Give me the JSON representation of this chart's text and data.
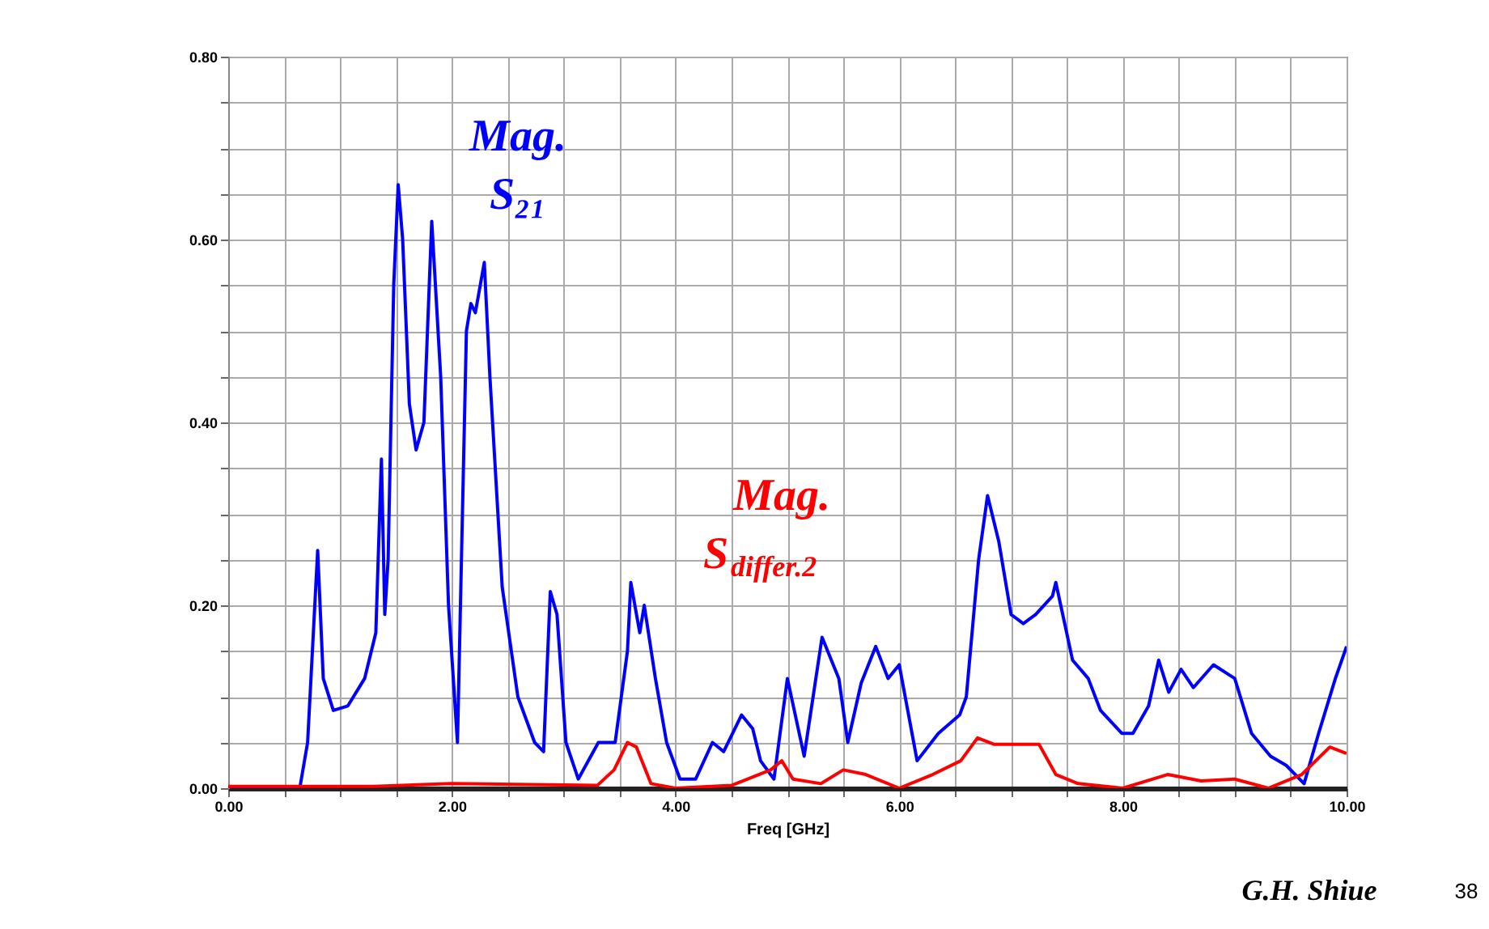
{
  "chart_data": {
    "type": "line",
    "xlabel": "Freq [GHz]",
    "xlim": [
      0,
      10
    ],
    "ylim": [
      0,
      0.8
    ],
    "xticks": [
      {
        "value": 0,
        "label": "0.00"
      },
      {
        "value": 0.5,
        "label": null
      },
      {
        "value": 1,
        "label": null
      },
      {
        "value": 1.5,
        "label": null
      },
      {
        "value": 2,
        "label": "2.00"
      },
      {
        "value": 2.5,
        "label": null
      },
      {
        "value": 3,
        "label": null
      },
      {
        "value": 3.5,
        "label": null
      },
      {
        "value": 4,
        "label": "4.00"
      },
      {
        "value": 4.5,
        "label": null
      },
      {
        "value": 5,
        "label": null
      },
      {
        "value": 5.5,
        "label": null
      },
      {
        "value": 6,
        "label": "6.00"
      },
      {
        "value": 6.5,
        "label": null
      },
      {
        "value": 7,
        "label": null
      },
      {
        "value": 7.5,
        "label": null
      },
      {
        "value": 8,
        "label": "8.00"
      },
      {
        "value": 8.5,
        "label": null
      },
      {
        "value": 9,
        "label": null
      },
      {
        "value": 9.5,
        "label": null
      },
      {
        "value": 10,
        "label": "10.00"
      }
    ],
    "yticks": [
      {
        "value": 0,
        "label": "0.00"
      },
      {
        "value": 0.05,
        "label": null
      },
      {
        "value": 0.1,
        "label": null
      },
      {
        "value": 0.15,
        "label": null
      },
      {
        "value": 0.2,
        "label": "0.20"
      },
      {
        "value": 0.25,
        "label": null
      },
      {
        "value": 0.3,
        "label": null
      },
      {
        "value": 0.35,
        "label": null
      },
      {
        "value": 0.4,
        "label": "0.40"
      },
      {
        "value": 0.45,
        "label": null
      },
      {
        "value": 0.5,
        "label": null
      },
      {
        "value": 0.55,
        "label": null
      },
      {
        "value": 0.6,
        "label": "0.60"
      },
      {
        "value": 0.65,
        "label": null
      },
      {
        "value": 0.7,
        "label": null
      },
      {
        "value": 0.75,
        "label": null
      },
      {
        "value": 0.8,
        "label": "0.80"
      }
    ],
    "grid": true,
    "legend": false,
    "marker": "none",
    "line_style": "solid",
    "series": [
      {
        "name": "Mag. S₂₁",
        "color": "#0000ff",
        "x": [
          0,
          0.5,
          0.64,
          0.71,
          0.8,
          0.85,
          0.94,
          1.07,
          1.22,
          1.32,
          1.37,
          1.4,
          1.43,
          1.48,
          1.52,
          1.56,
          1.62,
          1.68,
          1.75,
          1.82,
          1.9,
          1.97,
          2.05,
          2.13,
          2.17,
          2.21,
          2.29,
          2.34,
          2.45,
          2.59,
          2.74,
          2.82,
          2.88,
          2.94,
          3.02,
          3.13,
          3.31,
          3.46,
          3.57,
          3.6,
          3.68,
          3.72,
          3.82,
          3.92,
          4.04,
          4.18,
          4.33,
          4.43,
          4.59,
          4.69,
          4.76,
          4.88,
          5.0,
          5.15,
          5.31,
          5.46,
          5.54,
          5.66,
          5.79,
          5.9,
          6.0,
          6.16,
          6.35,
          6.54,
          6.6,
          6.71,
          6.79,
          6.89,
          7.0,
          7.11,
          7.22,
          7.37,
          7.4,
          7.55,
          7.69,
          7.8,
          7.99,
          8.09,
          8.23,
          8.32,
          8.41,
          8.52,
          8.63,
          8.81,
          9.0,
          9.15,
          9.32,
          9.46,
          9.62,
          9.75,
          9.9,
          10
        ],
        "values": [
          0,
          0,
          0,
          0.05,
          0.26,
          0.12,
          0.085,
          0.09,
          0.12,
          0.17,
          0.36,
          0.19,
          0.25,
          0.55,
          0.66,
          0.6,
          0.42,
          0.37,
          0.4,
          0.62,
          0.45,
          0.2,
          0.05,
          0.5,
          0.53,
          0.52,
          0.575,
          0.45,
          0.22,
          0.1,
          0.05,
          0.04,
          0.215,
          0.19,
          0.05,
          0.01,
          0.05,
          0.05,
          0.15,
          0.225,
          0.17,
          0.2,
          0.12,
          0.05,
          0.01,
          0.01,
          0.05,
          0.04,
          0.08,
          0.065,
          0.03,
          0.01,
          0.12,
          0.035,
          0.165,
          0.12,
          0.05,
          0.115,
          0.155,
          0.12,
          0.135,
          0.03,
          0.06,
          0.08,
          0.1,
          0.25,
          0.32,
          0.27,
          0.19,
          0.18,
          0.19,
          0.21,
          0.225,
          0.14,
          0.12,
          0.085,
          0.06,
          0.06,
          0.09,
          0.14,
          0.105,
          0.13,
          0.11,
          0.135,
          0.12,
          0.06,
          0.035,
          0.025,
          0.005,
          0.06,
          0.12,
          0.155
        ]
      },
      {
        "name": "Mag. S$_{differ.2}$",
        "color": "#ff0000",
        "x": [
          0,
          1.3,
          2.0,
          3.3,
          3.45,
          3.57,
          3.65,
          3.78,
          4.0,
          4.5,
          4.85,
          4.95,
          5.05,
          5.3,
          5.5,
          5.7,
          6.0,
          6.3,
          6.55,
          6.7,
          6.85,
          7.25,
          7.4,
          7.6,
          8.0,
          8.4,
          8.7,
          9.0,
          9.3,
          9.6,
          9.85,
          10
        ],
        "values": [
          0.002,
          0.002,
          0.005,
          0.003,
          0.02,
          0.05,
          0.045,
          0.005,
          0,
          0.003,
          0.02,
          0.03,
          0.01,
          0.005,
          0.02,
          0.015,
          0,
          0.015,
          0.03,
          0.055,
          0.048,
          0.048,
          0.015,
          0.005,
          0,
          0.015,
          0.008,
          0.01,
          0,
          0.015,
          0.045,
          0.038
        ]
      }
    ],
    "annotations": [
      "G.H. Shiue",
      "38"
    ]
  }
}
